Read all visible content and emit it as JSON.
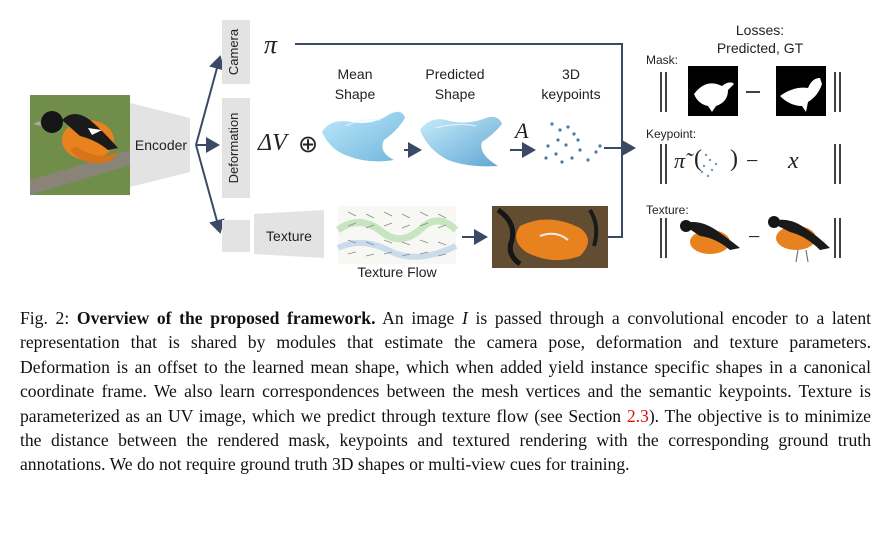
{
  "figure": {
    "encoder_label": "Encoder",
    "camera_label": "Camera",
    "deformation_label": "Deformation",
    "texture_label": "Texture",
    "pi_symbol": "π",
    "delta_v": "ΔV",
    "oplus": "⊕",
    "mean_shape_label": "Mean Shape",
    "predicted_shape_label": "Predicted Shape",
    "keypoints_label": "3D keypoints",
    "a_symbol": "A",
    "texture_flow_label": "Texture Flow",
    "losses_title": "Losses:",
    "losses_subtitle": "Predicted, GT",
    "mask_label": "Mask:",
    "keypoint_label": "Keypoint:",
    "texture_loss_label": "Texture:",
    "x_symbol": "x",
    "minus": "−",
    "pi_tilde": "π̃"
  },
  "caption": {
    "fig_num": "Fig. 2:",
    "title": "Overview of the proposed framework.",
    "text_1": "An image",
    "image_var": "I",
    "text_2": "is passed through a convolutional encoder to a latent representation that is shared by modules that estimate the camera pose, deformation and texture parameters. Deformation is an offset to the learned mean shape, which when added yield instance specific shapes in a canonical coordinate frame. We also learn correspondences between the mesh vertices and the semantic keypoints. Texture is parameterized as an UV image, which we predict through texture flow (see Section",
    "section_ref": "2.3",
    "text_3": "). The objective is to minimize the distance between the rendered mask, keypoints and textured rendering with the corresponding ground truth annotations. We do not require ground truth 3D shapes or multi-view cues for training."
  },
  "colors": {
    "arrow": "#3a4a66",
    "loss_panel": "#e4eddf",
    "module_box": "#e3e3e3",
    "bird_orange": "#e8821e",
    "shape_blue": "#8fd0ec",
    "section_ref": "#dd1111"
  }
}
